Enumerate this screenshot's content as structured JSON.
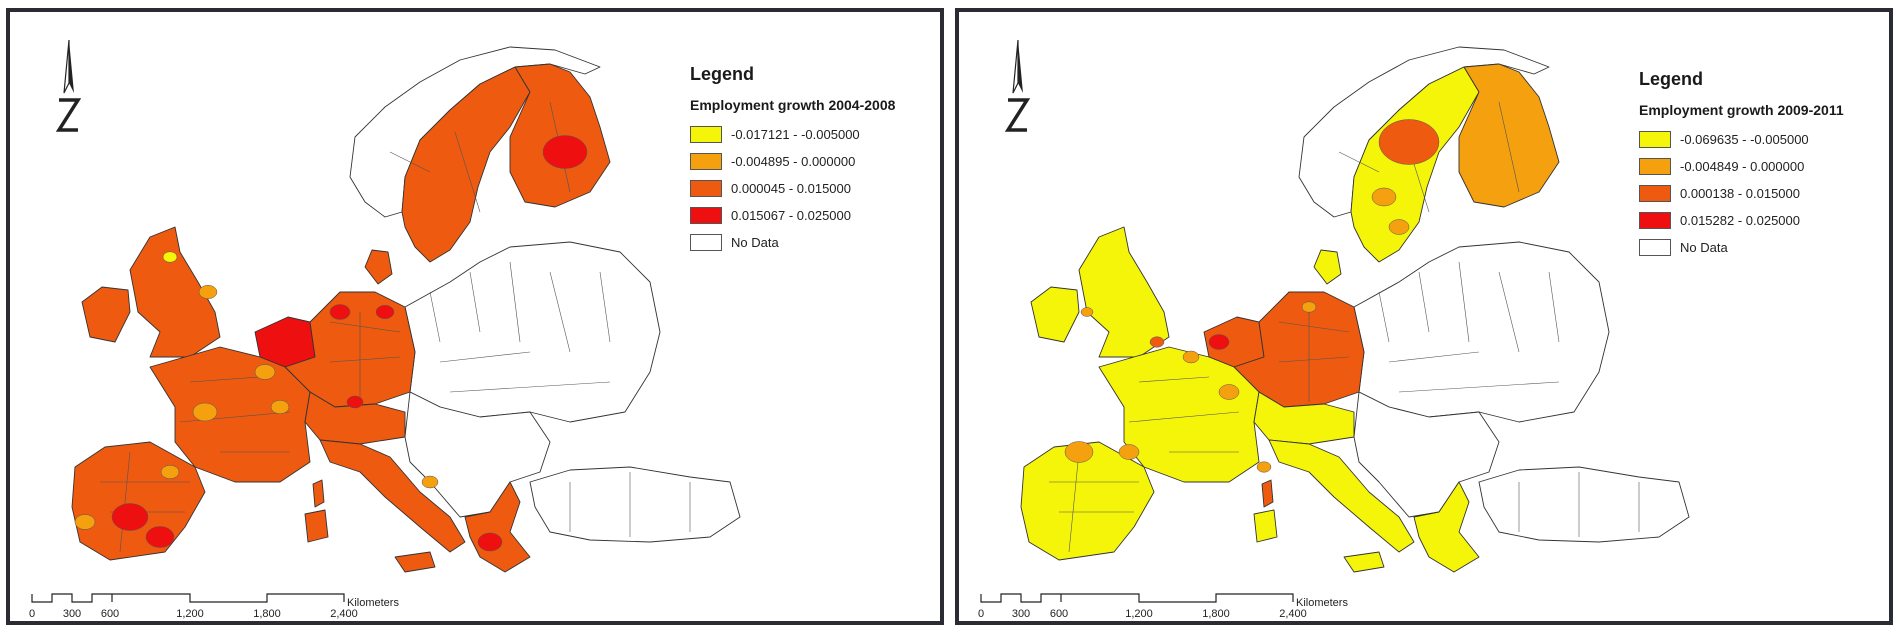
{
  "colors": {
    "class1": "#f5f50a",
    "class2": "#f5a00f",
    "class3": "#ee5a10",
    "class4": "#ee1010",
    "nodata": "#ffffff",
    "outline": "#333333"
  },
  "maps": [
    {
      "legend_title": "Legend",
      "legend_subtitle": "Employment  growth 2004-2008",
      "classes": [
        {
          "label": "-0.017121 - -0.005000",
          "color": "#f5f50a"
        },
        {
          "label": "-0.004895 - 0.000000",
          "color": "#f5a00f"
        },
        {
          "label": "0.000045 - 0.015000",
          "color": "#ee5a10"
        },
        {
          "label": "0.015067 - 0.025000",
          "color": "#ee1010"
        },
        {
          "label": "No Data",
          "color": "#ffffff"
        }
      ],
      "region_colors": {
        "iberia": "#ee5a10",
        "france": "#ee5a10",
        "uk": "#ee5a10",
        "ireland": "#ee5a10",
        "benelux": "#ee1010",
        "germany": "#ee5a10",
        "italy": "#ee5a10",
        "alps": "#ee5a10",
        "sweden": "#ee5a10",
        "finland": "#ee5a10",
        "norway": "#ffffff",
        "denmark": "#ee5a10",
        "greece": "#ee5a10",
        "corsica": "#ee5a10",
        "sardinia": "#ee5a10",
        "sicily": "#ee5a10",
        "east": "#ffffff",
        "balkans": "#ffffff",
        "turkey": "#ffffff"
      },
      "accents": "first"
    },
    {
      "legend_title": "Legend",
      "legend_subtitle": "Employment growth 2009-2011",
      "classes": [
        {
          "label": "-0.069635 - -0.005000",
          "color": "#f5f50a"
        },
        {
          "label": "-0.004849 - 0.000000",
          "color": "#f5a00f"
        },
        {
          "label": "0.000138 - 0.015000",
          "color": "#ee5a10"
        },
        {
          "label": "0.015282 - 0.025000",
          "color": "#ee1010"
        },
        {
          "label": "No Data",
          "color": "#ffffff"
        }
      ],
      "region_colors": {
        "iberia": "#f5f50a",
        "france": "#f5f50a",
        "uk": "#f5f50a",
        "ireland": "#f5f50a",
        "benelux": "#ee5a10",
        "germany": "#ee5a10",
        "italy": "#f5f50a",
        "alps": "#f5f50a",
        "sweden": "#f5f50a",
        "finland": "#f5a00f",
        "norway": "#ffffff",
        "denmark": "#f5f50a",
        "greece": "#f5f50a",
        "corsica": "#ee5a10",
        "sardinia": "#f5f50a",
        "sicily": "#f5f50a",
        "east": "#ffffff",
        "balkans": "#ffffff",
        "turkey": "#ffffff"
      },
      "accents": "second"
    }
  ],
  "scale": {
    "ticks": [
      "0",
      "300",
      "600",
      "1,200",
      "1,800",
      "2,400"
    ],
    "units": "Kilometers"
  }
}
